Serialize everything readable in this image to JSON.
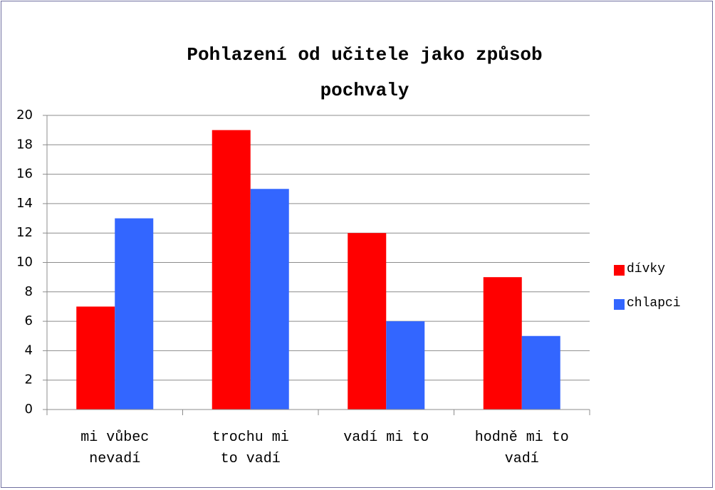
{
  "chart_data": {
    "type": "bar",
    "title": "Pohlazení od učitele jako způsob pochvaly",
    "categories": [
      "mi vůbec nevadí",
      "trochu mi to vadí",
      "vadí mi to",
      "hodně mi to vadí"
    ],
    "series": [
      {
        "name": "dívky",
        "color": "#ff0000",
        "values": [
          7,
          19,
          12,
          9
        ]
      },
      {
        "name": "chlapci",
        "color": "#3366ff",
        "values": [
          13,
          15,
          6,
          5
        ]
      }
    ],
    "ylim": [
      0,
      20
    ],
    "yticks": [
      0,
      2,
      4,
      6,
      8,
      10,
      12,
      14,
      16,
      18,
      20
    ],
    "grid": true,
    "legend": "right"
  }
}
